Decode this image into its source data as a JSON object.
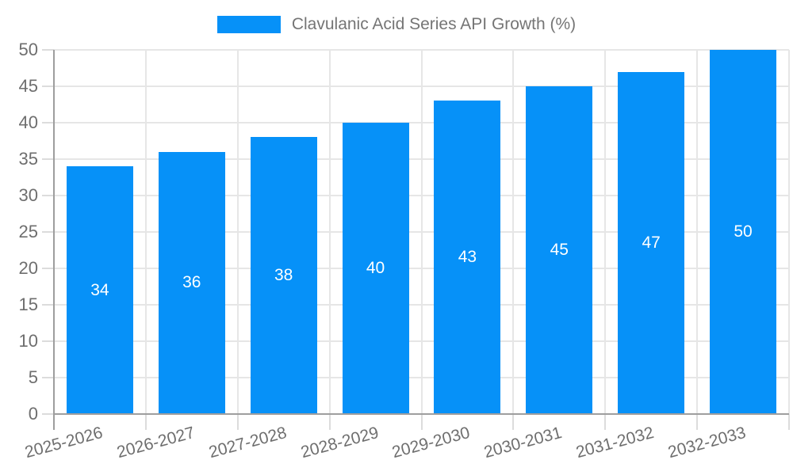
{
  "chart_data": {
    "type": "bar",
    "title": "Clavulanic Acid Series API Growth (%)",
    "legend": {
      "label": "Clavulanic Acid Series API Growth (%)",
      "position": "top-center"
    },
    "categories": [
      "2025-2026",
      "2026-2027",
      "2027-2028",
      "2028-2029",
      "2029-2030",
      "2030-2031",
      "2031-2032",
      "2032-2033"
    ],
    "values": [
      34,
      36,
      38,
      40,
      43,
      45,
      47,
      50
    ],
    "xlabel": "",
    "ylabel": "",
    "ylim": [
      0,
      50
    ],
    "yticks": [
      0,
      5,
      10,
      15,
      20,
      25,
      30,
      35,
      40,
      45,
      50
    ],
    "grid": true,
    "bar_value_labels_visible": true,
    "x_tick_rotation_deg": -15
  },
  "colors": {
    "bar": "#0691f8",
    "bar_label_text": "#ffffff",
    "grid_line": "#e6e6e6",
    "tick_mark": "#dcdcdc",
    "axis_line": "#9e9e9e",
    "tick_text": "#6e6e6e",
    "legend_text": "#757575",
    "background": "#ffffff"
  }
}
